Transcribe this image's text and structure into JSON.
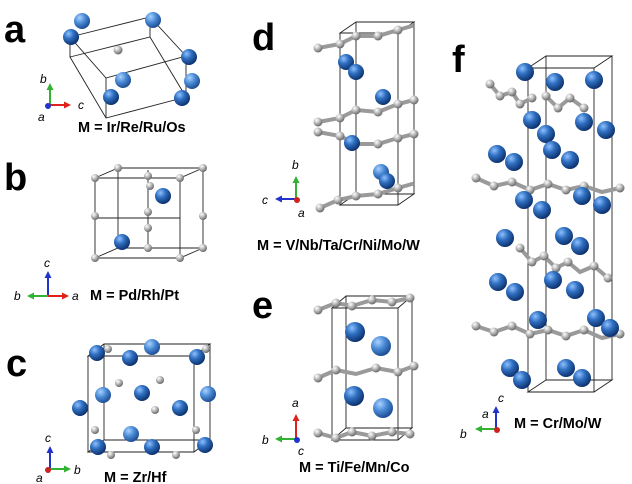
{
  "panels": [
    {
      "id": "a",
      "letter": "a",
      "caption": "M = Ir/Re/Ru/Os",
      "axes": {
        "up": "b",
        "right": "c",
        "out": "a"
      }
    },
    {
      "id": "b",
      "letter": "b",
      "caption": "M = Pd/Rh/Pt",
      "axes": {
        "up": "c",
        "right": "a",
        "left": "b"
      }
    },
    {
      "id": "c",
      "letter": "c",
      "caption": "M = Zr/Hf",
      "axes": {
        "up": "c",
        "right": "b",
        "out": "a"
      }
    },
    {
      "id": "d",
      "letter": "d",
      "caption": "M = V/Nb/Ta/Cr/Ni/Mo/W",
      "axes": {
        "up": "b",
        "left": "c",
        "out": "a"
      }
    },
    {
      "id": "e",
      "letter": "e",
      "caption": "M = Ti/Fe/Mn/Co",
      "axes": {
        "up": "a",
        "left": "b",
        "out": "c"
      }
    },
    {
      "id": "f",
      "letter": "f",
      "caption": "M = Cr/Mo/W",
      "axes": {
        "up": "c",
        "left": "b",
        "out": "a"
      }
    }
  ],
  "colors": {
    "metal_atom": "#2f6fc0",
    "light_atom": "#b5b5b5",
    "axis_red": "#e0201a",
    "axis_green": "#32b232",
    "axis_blue": "#2233cc",
    "origin_dot": "#cc2222"
  }
}
